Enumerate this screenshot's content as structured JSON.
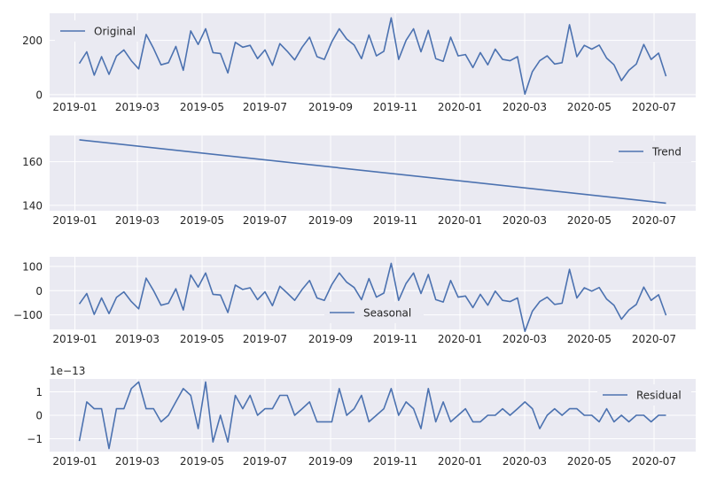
{
  "chart_data": [
    {
      "type": "line",
      "legend": "top-left",
      "series": [
        {
          "name": "Original",
          "x": "weekly 2019-01-06 .. 2020-07-12",
          "values": [
            115,
            158,
            72,
            140,
            75,
            142,
            165,
            125,
            95,
            222,
            170,
            110,
            118,
            178,
            90,
            235,
            185,
            243,
            155,
            152,
            80,
            193,
            175,
            182,
            133,
            165,
            108,
            188,
            160,
            128,
            175,
            212,
            140,
            130,
            195,
            243,
            205,
            183,
            133,
            220,
            143,
            160,
            283,
            130,
            200,
            243,
            158,
            237,
            133,
            123,
            212,
            143,
            148,
            100,
            155,
            110,
            168,
            130,
            125,
            140,
            2,
            85,
            125,
            143,
            113,
            118,
            258,
            140,
            182,
            168,
            183,
            135,
            110,
            52,
            90,
            113,
            185,
            130,
            153,
            68
          ]
        }
      ],
      "ylim": [
        -10,
        300
      ],
      "yticks": [
        0,
        200
      ],
      "xticks": [
        "2019-01",
        "2019-03",
        "2019-05",
        "2019-07",
        "2019-09",
        "2019-11",
        "2020-01",
        "2020-03",
        "2020-05",
        "2020-07"
      ]
    },
    {
      "type": "line",
      "legend": "top-right",
      "series": [
        {
          "name": "Trend",
          "values": [
            170,
            141
          ]
        }
      ],
      "ylim": [
        137.5,
        172
      ],
      "yticks": [
        140,
        160
      ],
      "xticks": [
        "2019-01",
        "2019-03",
        "2019-05",
        "2019-07",
        "2019-09",
        "2019-11",
        "2020-01",
        "2020-03",
        "2020-05",
        "2020-07"
      ]
    },
    {
      "type": "line",
      "legend": "lower-center",
      "series": [
        {
          "name": "Seasonal",
          "values": [
            -55,
            -12,
            -98,
            -30,
            -95,
            -28,
            -5,
            -45,
            -75,
            52,
            0,
            -60,
            -52,
            8,
            -80,
            65,
            15,
            73,
            -15,
            -18,
            -90,
            23,
            5,
            12,
            -37,
            -5,
            -62,
            18,
            -10,
            -40,
            5,
            42,
            -30,
            -40,
            25,
            73,
            35,
            13,
            -37,
            50,
            -27,
            -10,
            113,
            -40,
            30,
            73,
            -12,
            67,
            -37,
            -47,
            42,
            -27,
            -22,
            -70,
            -15,
            -60,
            -2,
            -40,
            -45,
            -30,
            -168,
            -85,
            -45,
            -27,
            -57,
            -52,
            88,
            -30,
            12,
            -2,
            13,
            -35,
            -60,
            -118,
            -80,
            -57,
            15,
            -40,
            -17,
            -102
          ]
        }
      ],
      "ylim": [
        -160,
        140
      ],
      "yticks": [
        -100,
        0,
        100
      ],
      "xticks": [
        "2019-01",
        "2019-03",
        "2019-05",
        "2019-07",
        "2019-09",
        "2019-11",
        "2020-01",
        "2020-03",
        "2020-05",
        "2020-07"
      ]
    },
    {
      "type": "line",
      "legend": "top-right",
      "offset_label": "1e−13",
      "series": [
        {
          "name": "Residual",
          "values": [
            -1.1,
            0.57,
            0.28,
            0.28,
            -1.42,
            0.28,
            0.28,
            1.14,
            1.42,
            0.28,
            0.28,
            -0.28,
            0,
            0.57,
            1.14,
            0.85,
            -0.57,
            1.42,
            -1.14,
            0,
            -1.14,
            0.85,
            0.28,
            0.85,
            0,
            0.28,
            0.28,
            0.85,
            0.85,
            0,
            0.28,
            0.57,
            -0.28,
            -0.28,
            -0.28,
            1.14,
            0,
            0.28,
            0.85,
            -0.28,
            0,
            0.28,
            1.14,
            0,
            0.57,
            0.28,
            -0.57,
            1.14,
            -0.28,
            0.57,
            -0.28,
            0,
            0.28,
            -0.28,
            -0.28,
            0,
            0,
            0.28,
            0,
            0.28,
            0.57,
            0.28,
            -0.57,
            0,
            0.28,
            0,
            0.28,
            0.28,
            0,
            0,
            -0.28,
            0.28,
            -0.28,
            0,
            -0.28,
            0,
            0,
            -0.28,
            0,
            0
          ]
        }
      ],
      "ylim": [
        -1.55,
        1.55
      ],
      "yticks": [
        -1,
        0,
        1
      ],
      "xticks": [
        "2019-01",
        "2019-03",
        "2019-05",
        "2019-07",
        "2019-09",
        "2019-11",
        "2020-01",
        "2020-03",
        "2020-05",
        "2020-07"
      ]
    }
  ],
  "colors": {
    "line": "#4c72b0",
    "panel": "#eaeaf2",
    "grid": "#ffffff"
  }
}
